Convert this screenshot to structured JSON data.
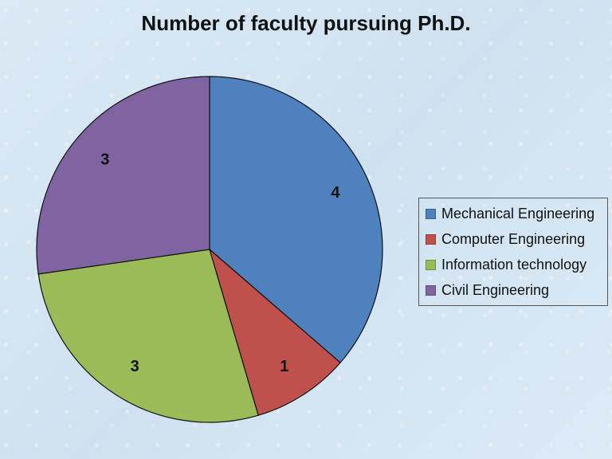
{
  "chart_data": {
    "type": "pie",
    "title": "Number of faculty pursuing Ph.D.",
    "categories": [
      "Mechanical Engineering",
      "Computer Engineering",
      "Information technology",
      "Civil Engineering"
    ],
    "values": [
      4,
      1,
      3,
      3
    ],
    "data_labels": [
      "4",
      "1",
      "3",
      "3"
    ],
    "colors": [
      "#4f81bd",
      "#c0504d",
      "#9bbb59",
      "#8064a2"
    ],
    "start_angle": "12 o'clock",
    "direction": "clockwise",
    "legend_position": "right"
  }
}
